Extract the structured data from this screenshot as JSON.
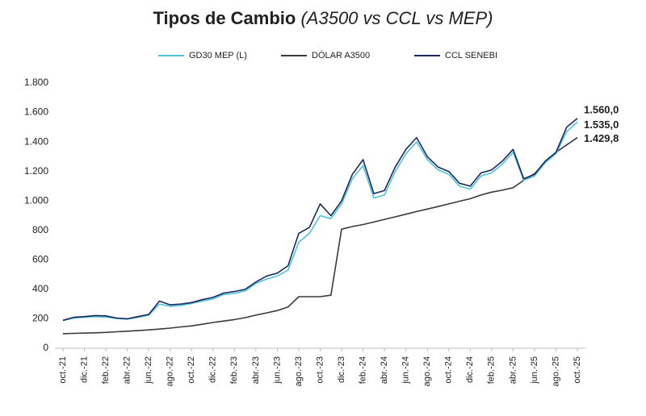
{
  "chart_data": {
    "type": "line",
    "title": "Tipos de Cambio",
    "subtitle": "(A3500 vs CCL vs MEP)",
    "categories": [
      "oct.-21",
      null,
      "dic.-21",
      null,
      "feb.-22",
      null,
      "abr.-22",
      null,
      "jun.-22",
      null,
      "ago.-22",
      null,
      "oct.-22",
      null,
      "dic.-22",
      null,
      "feb.-23",
      null,
      "abr.-23",
      null,
      "jun.-23",
      null,
      "ago.-23",
      null,
      "oct.-23",
      null,
      "dic.-23",
      null,
      "feb.-24",
      null,
      "abr.-24",
      null,
      "jun.-24",
      null,
      "ago.-24",
      null,
      "oct.-24",
      null,
      "dic.-24",
      null,
      "feb.-25",
      null,
      "abr.-25",
      null,
      "jun.-25",
      null,
      "ago.-25",
      null,
      "oct.-25"
    ],
    "series": [
      {
        "name": "GD30 MEP (L)",
        "color": "#4fc3d9",
        "values": [
          188,
          205,
          210,
          215,
          212,
          202,
          198,
          210,
          225,
          300,
          285,
          290,
          305,
          320,
          335,
          365,
          372,
          390,
          440,
          470,
          490,
          530,
          720,
          780,
          900,
          880,
          980,
          1150,
          1240,
          1020,
          1040,
          1200,
          1320,
          1400,
          1280,
          1210,
          1180,
          1100,
          1080,
          1170,
          1190,
          1250,
          1330,
          1140,
          1170,
          1260,
          1320,
          1470,
          1535
        ],
        "value_labels": [
          null,
          null,
          null,
          null,
          null,
          null,
          null,
          null,
          null,
          null,
          null,
          null,
          null,
          null,
          null,
          null,
          null,
          null,
          null,
          null,
          null,
          null,
          null,
          null,
          null,
          null,
          null,
          null,
          null,
          null,
          null,
          null,
          null,
          null,
          null,
          null,
          null,
          null,
          null,
          null,
          null,
          null,
          null,
          null,
          null,
          null,
          null,
          null,
          "1.535,0"
        ]
      },
      {
        "name": "DÓLAR A3500",
        "color": "#3a3a3a",
        "values": [
          99,
          101,
          103,
          105,
          108,
          112,
          116,
          120,
          125,
          130,
          137,
          145,
          152,
          163,
          175,
          185,
          195,
          208,
          225,
          240,
          256,
          280,
          350,
          350,
          350,
          360,
          808,
          826,
          840,
          857,
          875,
          892,
          910,
          928,
          945,
          962,
          980,
          998,
          1015,
          1040,
          1060,
          1073,
          1090,
          1140,
          1185,
          1260,
          1330,
          1380,
          1429.8
        ],
        "value_labels": [
          null,
          null,
          null,
          null,
          null,
          null,
          null,
          null,
          null,
          null,
          null,
          null,
          null,
          null,
          null,
          null,
          null,
          null,
          null,
          null,
          null,
          null,
          null,
          null,
          null,
          null,
          null,
          null,
          null,
          null,
          null,
          null,
          null,
          null,
          null,
          null,
          null,
          null,
          null,
          null,
          null,
          null,
          null,
          null,
          null,
          null,
          null,
          null,
          "1.429,8"
        ]
      },
      {
        "name": "CCL SENEBI",
        "color": "#1b2a5e",
        "values": [
          190,
          210,
          215,
          222,
          220,
          205,
          200,
          215,
          230,
          320,
          295,
          300,
          310,
          330,
          345,
          375,
          385,
          400,
          450,
          490,
          510,
          560,
          780,
          820,
          980,
          900,
          1000,
          1180,
          1280,
          1050,
          1070,
          1230,
          1350,
          1430,
          1300,
          1230,
          1200,
          1120,
          1100,
          1190,
          1210,
          1270,
          1350,
          1150,
          1180,
          1270,
          1330,
          1500,
          1560
        ],
        "value_labels": [
          null,
          null,
          null,
          null,
          null,
          null,
          null,
          null,
          null,
          null,
          null,
          null,
          null,
          null,
          null,
          null,
          null,
          null,
          null,
          null,
          null,
          null,
          null,
          null,
          null,
          null,
          null,
          null,
          null,
          null,
          null,
          null,
          null,
          null,
          null,
          null,
          null,
          null,
          null,
          null,
          null,
          null,
          null,
          null,
          null,
          null,
          null,
          null,
          "1.560,0"
        ]
      }
    ],
    "ylim": [
      0,
      1800
    ],
    "yticks": [
      0,
      200,
      400,
      600,
      800,
      {
        "value": 1000,
        "label": "1.000"
      },
      {
        "value": 1200,
        "label": "1.200"
      },
      {
        "value": 1400,
        "label": "1.400"
      },
      {
        "value": 1600,
        "label": "1.600"
      },
      {
        "value": 1800,
        "label": "1.800"
      }
    ],
    "grid": false,
    "legend": "top"
  }
}
